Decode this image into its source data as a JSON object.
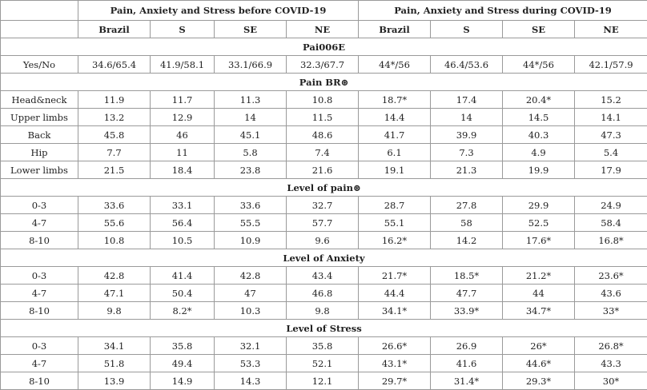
{
  "table": {
    "groups": [
      "Pain, Anxiety and Stress before COVID-19",
      "Pain, Anxiety and Stress during COVID-19"
    ],
    "columns": [
      "Brazil",
      "S",
      "SE",
      "NE",
      "Brazil",
      "S",
      "SE",
      "NE"
    ],
    "sections": [
      {
        "title": "Pai006E",
        "rows": [
          [
            "Yes/No",
            "34.6/65.4",
            "41.9/58.1",
            "33.1/66.9",
            "32.3/67.7",
            "44*/56",
            "46.4/53.6",
            "44*/56",
            "42.1/57.9"
          ]
        ]
      },
      {
        "title": "Pain BR⊛",
        "rows": [
          [
            "Head&neck",
            "11.9",
            "11.7",
            "11.3",
            "10.8",
            "18.7*",
            "17.4",
            "20.4*",
            "15.2"
          ],
          [
            "Upper limbs",
            "13.2",
            "12.9",
            "14",
            "11.5",
            "14.4",
            "14",
            "14.5",
            "14.1"
          ],
          [
            "Back",
            "45.8",
            "46",
            "45.1",
            "48.6",
            "41.7",
            "39.9",
            "40.3",
            "47.3"
          ],
          [
            "Hip",
            "7.7",
            "11",
            "5.8",
            "7.4",
            "6.1",
            "7.3",
            "4.9",
            "5.4"
          ],
          [
            "Lower limbs",
            "21.5",
            "18.4",
            "23.8",
            "21.6",
            "19.1",
            "21.3",
            "19.9",
            "17.9"
          ]
        ]
      },
      {
        "title": "Level of pain⊛",
        "rows": [
          [
            "0-3",
            "33.6",
            "33.1",
            "33.6",
            "32.7",
            "28.7",
            "27.8",
            "29.9",
            "24.9"
          ],
          [
            "4-7",
            "55.6",
            "56.4",
            "55.5",
            "57.7",
            "55.1",
            "58",
            "52.5",
            "58.4"
          ],
          [
            "8-10",
            "10.8",
            "10.5",
            "10.9",
            "9.6",
            "16.2*",
            "14.2",
            "17.6*",
            "16.8*"
          ]
        ]
      },
      {
        "title": "Level of Anxiety",
        "rows": [
          [
            "0-3",
            "42.8",
            "41.4",
            "42.8",
            "43.4",
            "21.7*",
            "18.5*",
            "21.2*",
            "23.6*"
          ],
          [
            "4-7",
            "47.1",
            "50.4",
            "47",
            "46.8",
            "44.4",
            "47.7",
            "44",
            "43.6"
          ],
          [
            "8-10",
            "9.8",
            "8.2*",
            "10.3",
            "9.8",
            "34.1*",
            "33.9*",
            "34.7*",
            "33*"
          ]
        ]
      },
      {
        "title": "Level of Stress",
        "rows": [
          [
            "0-3",
            "34.1",
            "35.8",
            "32.1",
            "35.8",
            "26.6*",
            "26.9",
            "26*",
            "26.8*"
          ],
          [
            "4-7",
            "51.8",
            "49.4",
            "53.3",
            "52.1",
            "43.1*",
            "41.6",
            "44.6*",
            "43.3"
          ],
          [
            "8-10",
            "13.9",
            "14.9",
            "14.3",
            "12.1",
            "29.7*",
            "31.4*",
            "29.3*",
            "30*"
          ]
        ]
      }
    ]
  }
}
